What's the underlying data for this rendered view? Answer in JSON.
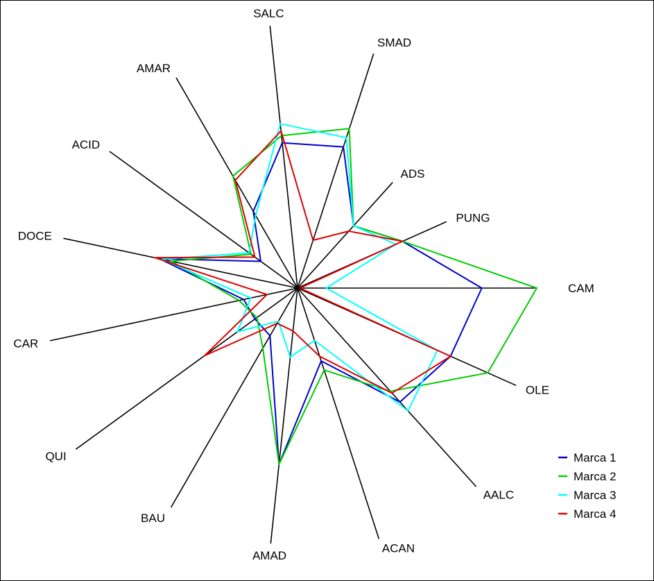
{
  "chart_data": {
    "type": "radar",
    "title": "",
    "axes": [
      "CAM",
      "PUNG",
      "ADS",
      "SMAD",
      "SALC",
      "AMAR",
      "ACID",
      "DOCE",
      "CAR",
      "QUI",
      "BAU",
      "AMAD",
      "ACAN",
      "AALC",
      "OLE"
    ],
    "scale_max": 10,
    "series": [
      {
        "name": "Marca 1",
        "color": "#0000cc",
        "values": [
          7.7,
          4.8,
          3.5,
          6.2,
          6.1,
          3.7,
          1.9,
          5.9,
          2.3,
          2.2,
          2.3,
          7.4,
          3.2,
          6.4,
          7.0
        ]
      },
      {
        "name": "Marca 2",
        "color": "#00cc00",
        "values": [
          10.0,
          4.8,
          3.5,
          7.0,
          6.4,
          5.4,
          2.4,
          5.4,
          2.5,
          2.1,
          2.9,
          7.4,
          3.6,
          5.8,
          8.7
        ]
      },
      {
        "name": "Marca 3",
        "color": "#00ffff",
        "values": [
          1.2,
          4.5,
          3.5,
          6.6,
          6.9,
          3.5,
          2.5,
          5.8,
          2.0,
          3.1,
          1.6,
          2.9,
          2.3,
          6.9,
          6.4
        ]
      },
      {
        "name": "Marca 4",
        "color": "#dd0000",
        "values": [
          0.1,
          4.8,
          3.2,
          2.1,
          6.6,
          5.2,
          2.2,
          6.1,
          1.3,
          4.8,
          1.7,
          1.8,
          3.0,
          5.9,
          7.0
        ]
      }
    ],
    "legend": {
      "position": "bottom-right"
    }
  }
}
